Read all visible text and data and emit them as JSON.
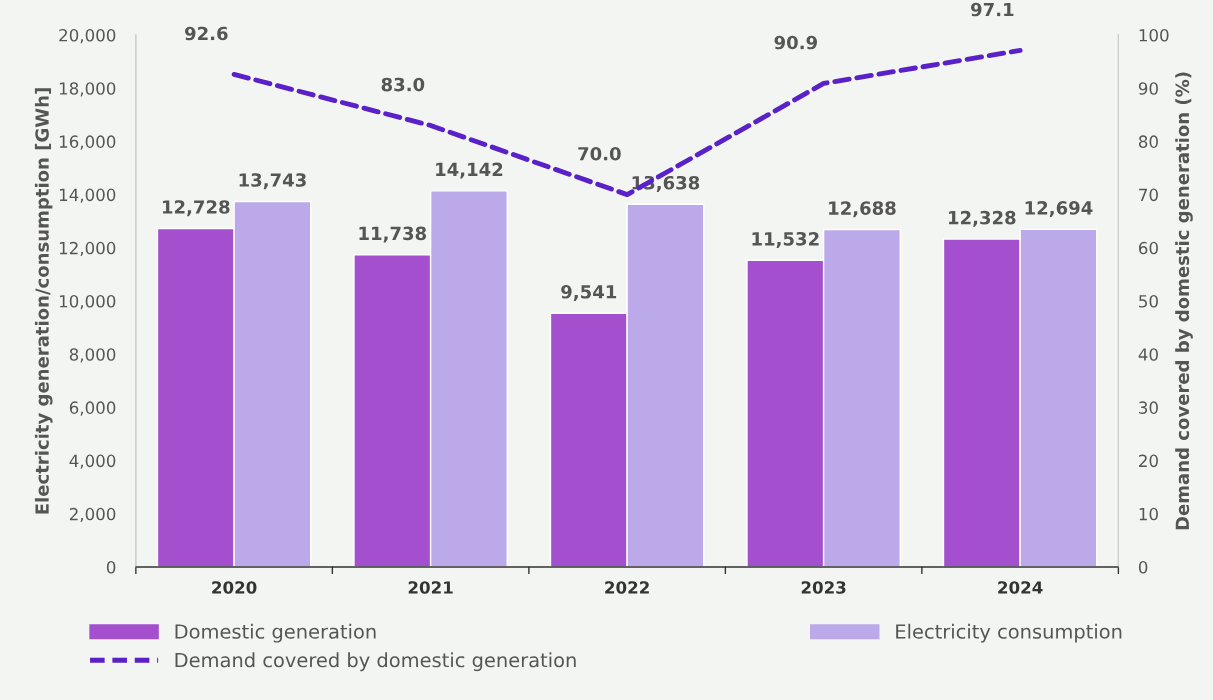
{
  "chart_data": {
    "type": "bar",
    "categories": [
      "2020",
      "2021",
      "2022",
      "2023",
      "2024"
    ],
    "ylabel": "Electricity generation/consumption [GWh]",
    "y2label": "Demand covered by domestic generation (%)",
    "ylim": [
      0,
      20000
    ],
    "yticks": [
      0,
      {
        "value": 2000,
        "label": "2,000"
      },
      {
        "value": 4000,
        "label": "4,000"
      },
      {
        "value": 6000,
        "label": "6,000"
      },
      {
        "value": 8000,
        "label": "8,000"
      },
      {
        "value": 10000,
        "label": "10,000"
      },
      {
        "value": 12000,
        "label": "12,000"
      },
      {
        "value": 14000,
        "label": "14,000"
      },
      {
        "value": 16000,
        "label": "16,000"
      },
      {
        "value": 18000,
        "label": "18,000"
      },
      {
        "value": 20000,
        "label": "20,000"
      }
    ],
    "y2lim": [
      0,
      100
    ],
    "y2ticks": [
      0,
      10,
      20,
      30,
      40,
      50,
      60,
      70,
      80,
      90,
      100
    ],
    "grid": false,
    "legend": "bottom",
    "series": [
      {
        "name": "Domestic generation",
        "color": "#a34fce",
        "values": [
          12728,
          11738,
          9541,
          11532,
          12328
        ],
        "value_labels": [
          "12,728",
          "11,738",
          "9,541",
          "11,532",
          "12,328"
        ]
      },
      {
        "name": "Electricity consumption",
        "color": "#bca9e9",
        "values": [
          13743,
          14142,
          13638,
          12688,
          12694
        ],
        "value_labels": [
          "13,743",
          "14,142",
          "13,638",
          "12,688",
          "12,694"
        ]
      },
      {
        "name": "Demand covered by domestic generation",
        "type": "line",
        "axis": "y2",
        "color": "#5a21c8",
        "line_style": "dashed",
        "marker": "none",
        "values": [
          92.6,
          83.0,
          70.0,
          90.9,
          97.1
        ],
        "value_labels": [
          "92.6",
          "83.0",
          "70.0",
          "90.9",
          "97.1"
        ]
      }
    ]
  }
}
